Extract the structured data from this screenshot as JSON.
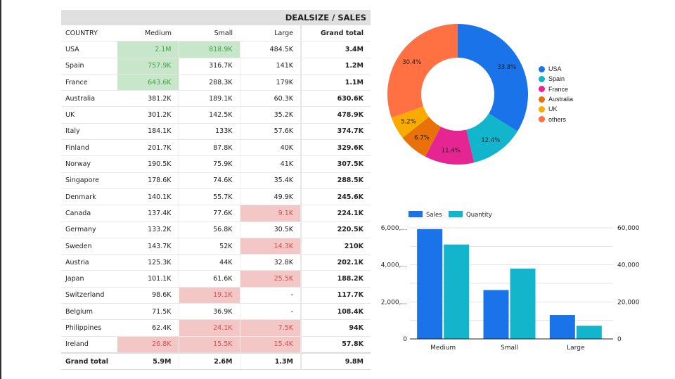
{
  "pivot": {
    "title": "DEALSIZE / SALES",
    "headers": [
      "COUNTRY",
      "Medium",
      "Small",
      "Large",
      "Grand total"
    ],
    "rows": [
      {
        "country": "USA",
        "medium": "2.1M",
        "small": "818.9K",
        "large": "484.5K",
        "total": "3.4M",
        "hl": [
          "hi",
          "hi",
          ""
        ]
      },
      {
        "country": "Spain",
        "medium": "757.9K",
        "small": "316.7K",
        "large": "141K",
        "total": "1.2M",
        "hl": [
          "hi",
          "",
          ""
        ]
      },
      {
        "country": "France",
        "medium": "643.6K",
        "small": "288.3K",
        "large": "179K",
        "total": "1.1M",
        "hl": [
          "hi",
          "",
          ""
        ]
      },
      {
        "country": "Australia",
        "medium": "381.2K",
        "small": "189.1K",
        "large": "60.3K",
        "total": "630.6K",
        "hl": [
          "",
          "",
          ""
        ]
      },
      {
        "country": "UK",
        "medium": "301.2K",
        "small": "142.5K",
        "large": "35.2K",
        "total": "478.9K",
        "hl": [
          "",
          "",
          ""
        ]
      },
      {
        "country": "Italy",
        "medium": "184.1K",
        "small": "133K",
        "large": "57.6K",
        "total": "374.7K",
        "hl": [
          "",
          "",
          ""
        ]
      },
      {
        "country": "Finland",
        "medium": "201.7K",
        "small": "87.8K",
        "large": "40K",
        "total": "329.6K",
        "hl": [
          "",
          "",
          ""
        ]
      },
      {
        "country": "Norway",
        "medium": "190.5K",
        "small": "75.9K",
        "large": "41K",
        "total": "307.5K",
        "hl": [
          "",
          "",
          ""
        ]
      },
      {
        "country": "Singapore",
        "medium": "178.6K",
        "small": "74.6K",
        "large": "35.4K",
        "total": "288.5K",
        "hl": [
          "",
          "",
          ""
        ]
      },
      {
        "country": "Denmark",
        "medium": "140.1K",
        "small": "55.7K",
        "large": "49.9K",
        "total": "245.6K",
        "hl": [
          "",
          "",
          ""
        ]
      },
      {
        "country": "Canada",
        "medium": "137.4K",
        "small": "77.6K",
        "large": "9.1K",
        "total": "224.1K",
        "hl": [
          "",
          "",
          "lo"
        ]
      },
      {
        "country": "Germany",
        "medium": "133.2K",
        "small": "56.8K",
        "large": "30.5K",
        "total": "220.5K",
        "hl": [
          "",
          "",
          ""
        ]
      },
      {
        "country": "Sweden",
        "medium": "143.7K",
        "small": "52K",
        "large": "14.3K",
        "total": "210K",
        "hl": [
          "",
          "",
          "lo"
        ]
      },
      {
        "country": "Austria",
        "medium": "125.3K",
        "small": "44K",
        "large": "32.8K",
        "total": "202.1K",
        "hl": [
          "",
          "",
          ""
        ]
      },
      {
        "country": "Japan",
        "medium": "101.1K",
        "small": "61.6K",
        "large": "25.5K",
        "total": "188.2K",
        "hl": [
          "",
          "",
          "lo"
        ]
      },
      {
        "country": "Switzerland",
        "medium": "98.6K",
        "small": "19.1K",
        "large": "-",
        "total": "117.7K",
        "hl": [
          "",
          "lo",
          ""
        ]
      },
      {
        "country": "Belgium",
        "medium": "71.5K",
        "small": "36.9K",
        "large": "-",
        "total": "108.4K",
        "hl": [
          "",
          "",
          ""
        ]
      },
      {
        "country": "Philippines",
        "medium": "62.4K",
        "small": "24.1K",
        "large": "7.5K",
        "total": "94K",
        "hl": [
          "",
          "lo",
          "lo"
        ]
      },
      {
        "country": "Ireland",
        "medium": "26.8K",
        "small": "15.5K",
        "large": "15.4K",
        "total": "57.8K",
        "hl": [
          "lo",
          "lo",
          "lo"
        ]
      }
    ],
    "grand_total": {
      "label": "Grand total",
      "medium": "5.9M",
      "small": "2.6M",
      "large": "1.3M",
      "total": "9.8M"
    }
  },
  "chart_data": [
    {
      "type": "pie",
      "variant": "donut",
      "title": "",
      "labels": [
        "USA",
        "Spain",
        "France",
        "Australia",
        "UK",
        "others"
      ],
      "values": [
        33.8,
        12.4,
        11.4,
        6.7,
        5.2,
        30.4
      ],
      "data_labels": [
        "33.8%",
        "12.4%",
        "11.4%",
        "6.7%",
        "5.2%",
        "30.4%"
      ],
      "colors": [
        "#1a73e8",
        "#12b5cb",
        "#e52592",
        "#e8710a",
        "#f9ab00",
        "#ff7043"
      ],
      "legend_position": "right"
    },
    {
      "type": "bar",
      "title": "",
      "categories": [
        "Medium",
        "Small",
        "Large"
      ],
      "series": [
        {
          "name": "Sales",
          "axis": "left",
          "color": "#1a73e8",
          "values": [
            5930000,
            2640000,
            1290000
          ]
        },
        {
          "name": "Quantity",
          "axis": "right",
          "color": "#12b5cb",
          "values": [
            51000,
            38000,
            7100
          ]
        }
      ],
      "y_left": {
        "ticks": [
          0,
          2000000,
          4000000,
          6000000
        ],
        "tick_labels": [
          "0",
          "2,000,...",
          "4,000,...",
          "6,000,..."
        ],
        "ylim": [
          0,
          6000000
        ]
      },
      "y_right": {
        "ticks": [
          0,
          20000,
          40000,
          60000
        ],
        "tick_labels": [
          "0",
          "20,000",
          "40,000",
          "60,000"
        ],
        "ylim": [
          0,
          60000
        ]
      },
      "grid": true,
      "legend_position": "top-left"
    }
  ]
}
